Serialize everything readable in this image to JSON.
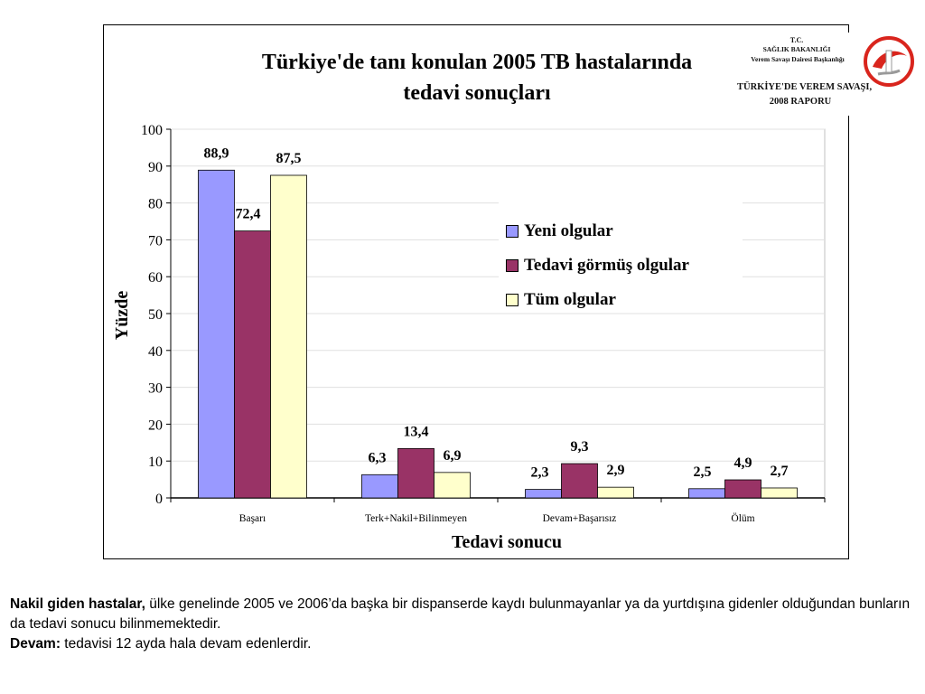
{
  "chart_data": {
    "type": "bar",
    "title_lines": [
      "Türkiye'de tanı konulan 2005 TB hastalarında",
      "tedavi sonuçları"
    ],
    "xlabel": "Tedavi sonucu",
    "ylabel": "Yüzde",
    "ylim": [
      0,
      100
    ],
    "yticks": [
      0,
      10,
      20,
      30,
      40,
      50,
      60,
      70,
      80,
      90,
      100
    ],
    "grid": true,
    "legend_position": "top-right",
    "categories": [
      "Başarı",
      "Terk+Nakil+Bilinmeyen",
      "Devam+Başarısız",
      "Ölüm"
    ],
    "series": [
      {
        "name": "Yeni olgular",
        "color": "#9999ff",
        "values": [
          88.9,
          6.3,
          2.3,
          2.5
        ],
        "labels": [
          "88,9",
          "6,3",
          "2,3",
          "2,5"
        ]
      },
      {
        "name": "Tedavi görmüş olgular",
        "color": "#993366",
        "values": [
          72.4,
          13.4,
          9.3,
          4.9
        ],
        "labels": [
          "72,4",
          "13,4",
          "9,3",
          "4,9"
        ]
      },
      {
        "name": "Tüm olgular",
        "color": "#ffffcc",
        "values": [
          87.5,
          6.9,
          2.9,
          2.7
        ],
        "labels": [
          "87,5",
          "6,9",
          "2,9",
          "2,7"
        ]
      }
    ]
  },
  "logo": {
    "line1": "T.C.",
    "line2": "SAĞLIK BAKANLIĞI",
    "line3": "Verem Savaşı Dairesi Başkanlığı",
    "line4": "TÜRKİYE'DE VEREM SAVAŞI,",
    "line5": "2008 RAPORU",
    "colors": {
      "ring": "#d9251d",
      "bg": "#ffffff"
    }
  },
  "notes": {
    "line1_bold": "Nakil giden hastalar,",
    "line1_text": " ülke genelinde 2005 ve 2006’da başka bir dispanserde kaydı bulunmayanlar ya da yurtdışına gidenler olduğundan bunların da tedavi sonucu bilinmemektedir.",
    "line2_bold": "Devam:",
    "line2_text": " tedavisi 12 ayda hala devam edenlerdir."
  }
}
